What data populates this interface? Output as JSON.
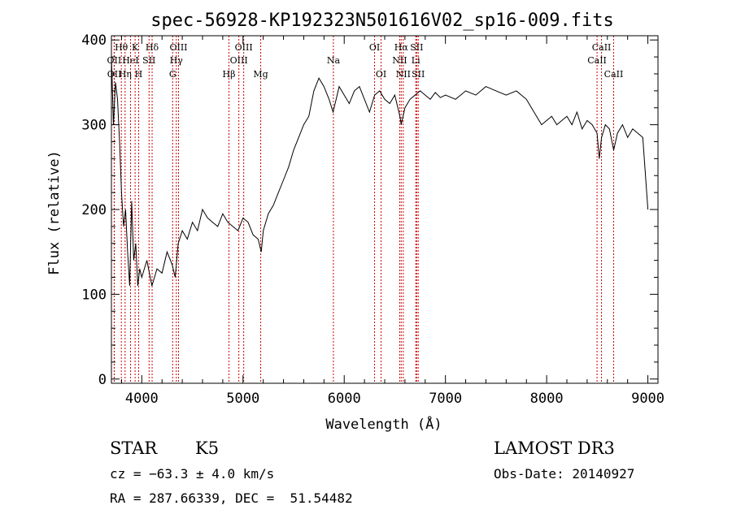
{
  "chart_data": {
    "type": "line",
    "title": "spec-56928-KP192323N501616V02_sp16-009.fits",
    "xlabel": "Wavelength (Å)",
    "ylabel": "Flux (relative)",
    "xlim": [
      3700,
      9100
    ],
    "ylim": [
      -5,
      405
    ],
    "xticks": [
      4000,
      5000,
      6000,
      7000,
      8000,
      9000
    ],
    "yticks": [
      0,
      100,
      200,
      300,
      400
    ],
    "grid": false,
    "series": [
      {
        "x": [
          3700,
          3720,
          3740,
          3760,
          3780,
          3800,
          3820,
          3840,
          3860,
          3880,
          3900,
          3920,
          3940,
          3960,
          3980,
          4000,
          4050,
          4100,
          4150,
          4200,
          4250,
          4300,
          4330,
          4360,
          4400,
          4450,
          4500,
          4550,
          4600,
          4650,
          4700,
          4750,
          4800,
          4850,
          4900,
          4950,
          5000,
          5050,
          5100,
          5150,
          5180,
          5200,
          5250,
          5300,
          5350,
          5400,
          5450,
          5500,
          5550,
          5600,
          5650,
          5700,
          5750,
          5800,
          5850,
          5890,
          5920,
          5950,
          6000,
          6050,
          6100,
          6150,
          6200,
          6250,
          6300,
          6350,
          6400,
          6450,
          6500,
          6550,
          6563,
          6600,
          6650,
          6700,
          6750,
          6800,
          6850,
          6900,
          6950,
          7000,
          7100,
          7200,
          7300,
          7400,
          7500,
          7600,
          7700,
          7800,
          7850,
          7900,
          7950,
          8000,
          8050,
          8100,
          8150,
          8200,
          8250,
          8300,
          8350,
          8400,
          8450,
          8498,
          8520,
          8542,
          8580,
          8620,
          8662,
          8700,
          8750,
          8800,
          8850,
          8900,
          8950,
          9000
        ],
        "y": [
          380,
          300,
          350,
          330,
          280,
          220,
          180,
          200,
          150,
          110,
          210,
          140,
          160,
          110,
          130,
          120,
          140,
          110,
          130,
          125,
          150,
          135,
          120,
          160,
          175,
          165,
          185,
          175,
          200,
          190,
          185,
          180,
          195,
          185,
          180,
          175,
          190,
          185,
          170,
          165,
          150,
          175,
          195,
          205,
          220,
          235,
          250,
          270,
          285,
          300,
          310,
          340,
          355,
          345,
          330,
          315,
          330,
          345,
          335,
          325,
          340,
          345,
          330,
          315,
          335,
          340,
          330,
          325,
          335,
          310,
          300,
          320,
          330,
          335,
          340,
          335,
          330,
          338,
          332,
          335,
          330,
          340,
          335,
          345,
          340,
          335,
          340,
          330,
          320,
          310,
          300,
          305,
          310,
          300,
          305,
          310,
          300,
          315,
          295,
          305,
          300,
          290,
          260,
          285,
          300,
          295,
          270,
          290,
          300,
          285,
          295,
          290,
          285,
          200
        ]
      }
    ],
    "spectral_lines": [
      {
        "label": "Hθ",
        "x": 3798,
        "row": 1
      },
      {
        "label": "OII",
        "x": 3727,
        "row": 2
      },
      {
        "label": "OII",
        "x": 3729,
        "row": 3
      },
      {
        "label": "K",
        "x": 3934,
        "row": 1
      },
      {
        "label": "HeI",
        "x": 3889,
        "row": 2
      },
      {
        "label": "Hη",
        "x": 3835,
        "row": 3
      },
      {
        "label": "Hδ",
        "x": 4102,
        "row": 1
      },
      {
        "label": "SII",
        "x": 4072,
        "row": 2
      },
      {
        "label": "H",
        "x": 3969,
        "row": 3
      },
      {
        "label": "OIII",
        "x": 4363,
        "row": 1
      },
      {
        "label": "Hγ",
        "x": 4341,
        "row": 2
      },
      {
        "label": "G",
        "x": 4305,
        "row": 3
      },
      {
        "label": "OIII",
        "x": 5007,
        "row": 1
      },
      {
        "label": "OIII",
        "x": 4959,
        "row": 2
      },
      {
        "label": "Hβ",
        "x": 4861,
        "row": 3
      },
      {
        "label": "Mg",
        "x": 5175,
        "row": 3
      },
      {
        "label": "Na",
        "x": 5893,
        "row": 2
      },
      {
        "label": "OI",
        "x": 6300,
        "row": 1
      },
      {
        "label": "OI",
        "x": 6364,
        "row": 3
      },
      {
        "label": "Hα",
        "x": 6563,
        "row": 1
      },
      {
        "label": "SII",
        "x": 6716,
        "row": 1
      },
      {
        "label": "NII",
        "x": 6548,
        "row": 2
      },
      {
        "label": "Li",
        "x": 6707,
        "row": 2
      },
      {
        "label": "NII",
        "x": 6583,
        "row": 3
      },
      {
        "label": "SII",
        "x": 6731,
        "row": 3
      },
      {
        "label": "CaII",
        "x": 8542,
        "row": 1
      },
      {
        "label": "CaII",
        "x": 8498,
        "row": 2
      },
      {
        "label": "CaII",
        "x": 8662,
        "row": 3
      }
    ]
  },
  "info": {
    "object_class": "STAR",
    "subclass": "K5",
    "survey": "LAMOST DR3",
    "cz": "cz = −63.3 ± 4.0 km/s",
    "obs_date": "Obs-Date: 20140927",
    "coords": "RA = 287.66339, DEC =  51.54482"
  }
}
